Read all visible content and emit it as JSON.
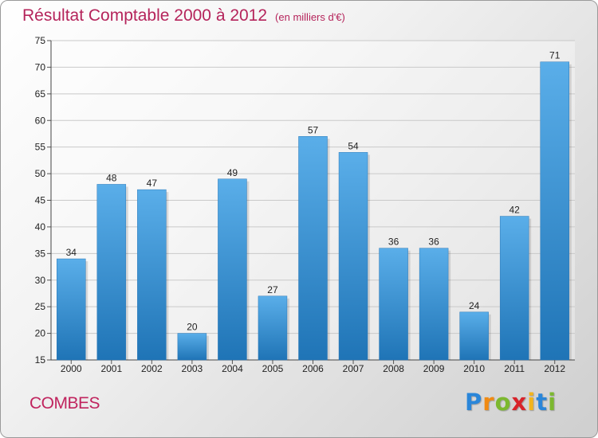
{
  "header": {
    "title": "Résultat Comptable 2000 à 2012",
    "unit": "(en milliers d'€)"
  },
  "commune": "COMBES",
  "logo": {
    "letters": [
      "P",
      "r",
      "o",
      "x",
      "i",
      "t",
      "i"
    ],
    "colors": [
      "#2a86d9",
      "#f08a12",
      "#7cb82f",
      "#d8232a",
      "#f2b41c",
      "#2a86d9",
      "#7cb82f"
    ]
  },
  "chart_data": {
    "type": "bar",
    "title": "Résultat Comptable 2000 à 2012",
    "ylabel": "en milliers d'€",
    "categories": [
      "2000",
      "2001",
      "2002",
      "2003",
      "2004",
      "2005",
      "2006",
      "2007",
      "2008",
      "2009",
      "2010",
      "2011",
      "2012"
    ],
    "values": [
      34,
      48,
      47,
      20,
      49,
      27,
      57,
      54,
      36,
      36,
      24,
      42,
      71
    ],
    "ylim": [
      15,
      75
    ],
    "yticks": [
      15,
      20,
      25,
      30,
      35,
      40,
      45,
      50,
      55,
      60,
      65,
      70,
      75
    ],
    "grid": true,
    "bar_color": "#3a96d9"
  }
}
